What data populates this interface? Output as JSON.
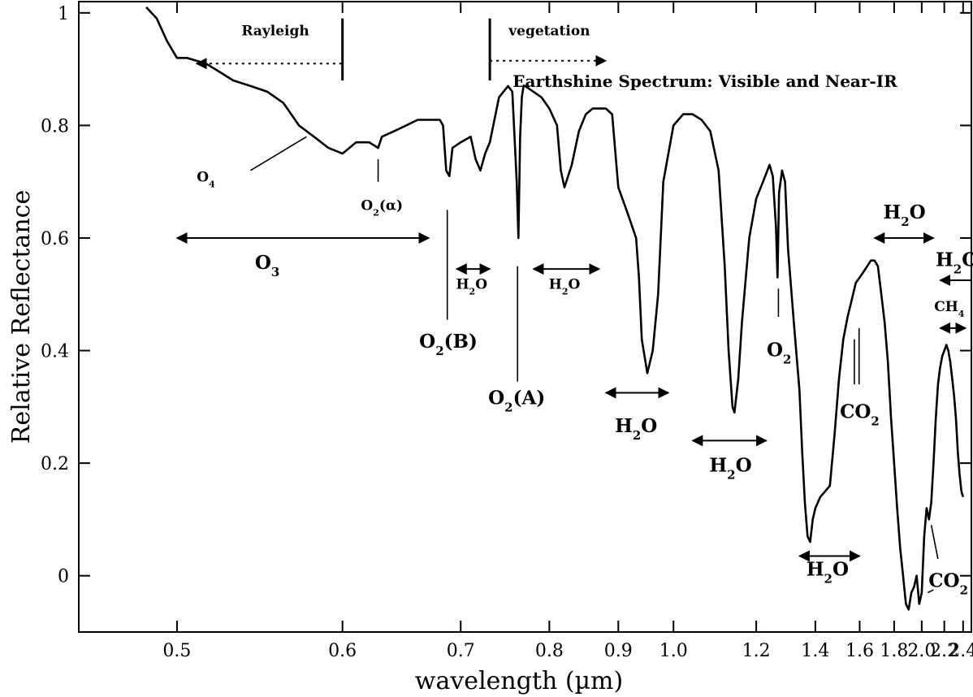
{
  "chart_data": {
    "type": "line",
    "title": "Earthshine Spectrum: Visible and Near-IR",
    "xlabel": "wavelength (µm)",
    "ylabel": "Relative Reflectance",
    "x_scale": "reciprocal",
    "xlim": [
      0.455,
      2.5
    ],
    "ylim": [
      -0.1,
      1.02
    ],
    "x_ticks": [
      0.5,
      0.6,
      0.7,
      0.8,
      0.9,
      1.0,
      1.2,
      1.4,
      1.6,
      1.8,
      2.0,
      2.2,
      2.4
    ],
    "x_tick_labels": [
      "0.5",
      "0.6",
      "0.7",
      "0.8",
      "0.9",
      "1.0",
      "1.2",
      "1.4",
      "1.6",
      "1.8",
      "2.0",
      "2.2",
      "2.4"
    ],
    "y_ticks": [
      0,
      0.2,
      0.4,
      0.6,
      0.8,
      1
    ],
    "y_tick_labels": [
      "0",
      "0.2",
      "0.4",
      "0.6",
      "0.8",
      "1"
    ],
    "grid": false,
    "series": [
      {
        "x": [
          0.485,
          0.49,
          0.495,
          0.5,
          0.505,
          0.51,
          0.515,
          0.52,
          0.53,
          0.54,
          0.55,
          0.56,
          0.57,
          0.58,
          0.59,
          0.6,
          0.61,
          0.62,
          0.627,
          0.63,
          0.64,
          0.65,
          0.66,
          0.67,
          0.68,
          0.683,
          0.686,
          0.689,
          0.692,
          0.7,
          0.71,
          0.715,
          0.72,
          0.725,
          0.73,
          0.74,
          0.75,
          0.755,
          0.76,
          0.762,
          0.764,
          0.766,
          0.768,
          0.77,
          0.78,
          0.79,
          0.8,
          0.81,
          0.815,
          0.82,
          0.83,
          0.84,
          0.85,
          0.86,
          0.87,
          0.88,
          0.89,
          0.9,
          0.91,
          0.92,
          0.93,
          0.935,
          0.94,
          0.95,
          0.96,
          0.97,
          0.98,
          1.0,
          1.02,
          1.04,
          1.06,
          1.08,
          1.1,
          1.115,
          1.125,
          1.135,
          1.14,
          1.15,
          1.16,
          1.18,
          1.2,
          1.22,
          1.24,
          1.25,
          1.26,
          1.265,
          1.27,
          1.28,
          1.29,
          1.3,
          1.32,
          1.34,
          1.35,
          1.36,
          1.37,
          1.38,
          1.39,
          1.4,
          1.42,
          1.44,
          1.46,
          1.48,
          1.5,
          1.52,
          1.54,
          1.56,
          1.58,
          1.6,
          1.62,
          1.64,
          1.66,
          1.68,
          1.7,
          1.72,
          1.74,
          1.76,
          1.78,
          1.8,
          1.82,
          1.84,
          1.86,
          1.88,
          1.9,
          1.92,
          1.94,
          1.96,
          1.98,
          2.0,
          2.02,
          2.04,
          2.06,
          2.08,
          2.1,
          2.12,
          2.14,
          2.16,
          2.18,
          2.2,
          2.22,
          2.24,
          2.26,
          2.28,
          2.3,
          2.32,
          2.34,
          2.36,
          2.38,
          2.4
        ],
        "y": [
          1.01,
          0.99,
          0.95,
          0.92,
          0.92,
          0.915,
          0.91,
          0.9,
          0.88,
          0.87,
          0.86,
          0.84,
          0.8,
          0.78,
          0.76,
          0.75,
          0.77,
          0.77,
          0.76,
          0.78,
          0.79,
          0.8,
          0.81,
          0.81,
          0.81,
          0.8,
          0.72,
          0.71,
          0.76,
          0.77,
          0.78,
          0.74,
          0.72,
          0.75,
          0.77,
          0.85,
          0.87,
          0.86,
          0.7,
          0.6,
          0.78,
          0.85,
          0.87,
          0.87,
          0.86,
          0.85,
          0.83,
          0.8,
          0.72,
          0.69,
          0.73,
          0.79,
          0.82,
          0.83,
          0.83,
          0.83,
          0.82,
          0.69,
          0.66,
          0.63,
          0.6,
          0.53,
          0.42,
          0.36,
          0.4,
          0.5,
          0.7,
          0.8,
          0.82,
          0.82,
          0.81,
          0.79,
          0.72,
          0.55,
          0.4,
          0.3,
          0.29,
          0.35,
          0.45,
          0.6,
          0.67,
          0.7,
          0.73,
          0.71,
          0.62,
          0.53,
          0.68,
          0.72,
          0.7,
          0.58,
          0.45,
          0.33,
          0.22,
          0.13,
          0.07,
          0.06,
          0.1,
          0.12,
          0.14,
          0.15,
          0.16,
          0.25,
          0.35,
          0.42,
          0.46,
          0.49,
          0.52,
          0.53,
          0.54,
          0.55,
          0.56,
          0.56,
          0.55,
          0.5,
          0.45,
          0.38,
          0.28,
          0.2,
          0.12,
          0.05,
          0.0,
          -0.05,
          -0.06,
          -0.03,
          -0.02,
          0.0,
          -0.05,
          -0.03,
          0.07,
          0.12,
          0.1,
          0.13,
          0.2,
          0.28,
          0.34,
          0.37,
          0.39,
          0.4,
          0.41,
          0.4,
          0.38,
          0.35,
          0.32,
          0.28,
          0.22,
          0.18,
          0.15,
          0.14
        ]
      }
    ],
    "annotations": [
      {
        "label": "Rayleigh",
        "kind": "arrow-left",
        "style": "dotted",
        "x1": 0.51,
        "x2": 0.6,
        "y": 0.91,
        "label_x": 0.555,
        "label_y": 0.96,
        "marker_x": 0.6,
        "marker_y1": 0.88,
        "marker_y2": 0.99
      },
      {
        "label": "vegetation",
        "kind": "arrow-right",
        "style": "dotted",
        "x1": 0.73,
        "x2": 0.88,
        "y": 0.915,
        "label_x": 0.8,
        "label_y": 0.96,
        "marker_x": 0.73,
        "marker_y1": 0.88,
        "marker_y2": 0.99
      },
      {
        "label": "O",
        "sub": "4",
        "label_x": 0.515,
        "label_y": 0.7,
        "line": [
          [
            0.54,
            0.72
          ],
          [
            0.575,
            0.78
          ]
        ]
      },
      {
        "label": "O",
        "sub": "2",
        "suffix": "(α)",
        "label_x": 0.63,
        "label_y": 0.65,
        "line": [
          [
            0.627,
            0.7
          ],
          [
            0.627,
            0.74
          ]
        ]
      },
      {
        "label": "O",
        "sub": "3",
        "label_x": 0.55,
        "label_y": 0.545,
        "kind": "double-arrow",
        "x1": 0.5,
        "x2": 0.67,
        "y": 0.6
      },
      {
        "label": "O",
        "sub": "2",
        "suffix": "(B)",
        "label_x": 0.688,
        "label_y": 0.405,
        "line": [
          [
            0.687,
            0.455
          ],
          [
            0.687,
            0.65
          ]
        ]
      },
      {
        "label": "H",
        "sub": "2",
        "suffix": "O",
        "label_x": 0.711,
        "label_y": 0.51,
        "kind": "double-arrow",
        "x1": 0.696,
        "x2": 0.73,
        "y": 0.545,
        "small": true
      },
      {
        "label": "H",
        "sub": "2",
        "suffix": "O",
        "label_x": 0.82,
        "label_y": 0.51,
        "kind": "double-arrow",
        "x1": 0.78,
        "x2": 0.87,
        "y": 0.545,
        "small": true
      },
      {
        "label": "O",
        "sub": "2",
        "suffix": "(A)",
        "label_x": 0.76,
        "label_y": 0.305,
        "line": [
          [
            0.761,
            0.345
          ],
          [
            0.761,
            0.55
          ]
        ]
      },
      {
        "label": "H",
        "sub": "2",
        "suffix": "O",
        "label_x": 0.93,
        "label_y": 0.255,
        "kind": "double-arrow",
        "x1": 0.88,
        "x2": 0.99,
        "y": 0.325
      },
      {
        "label": "O",
        "sub": "2",
        "label_x": 1.27,
        "label_y": 0.39,
        "line": [
          [
            1.268,
            0.46
          ],
          [
            1.268,
            0.51
          ]
        ]
      },
      {
        "label": "H",
        "sub": "2",
        "suffix": "O",
        "label_x": 1.13,
        "label_y": 0.185,
        "kind": "double-arrow",
        "x1": 1.04,
        "x2": 1.23,
        "y": 0.24
      },
      {
        "label": "H",
        "sub": "2",
        "suffix": "O",
        "label_x": 1.45,
        "label_y": 0.0,
        "kind": "double-arrow",
        "x1": 1.34,
        "x2": 1.6,
        "y": 0.035
      },
      {
        "label": "CO",
        "sub": "2",
        "label_x": 1.6,
        "label_y": 0.28,
        "line2": [
          [
            1.573,
            0.34
          ],
          [
            1.573,
            0.42
          ],
          [
            1.597,
            0.34
          ],
          [
            1.597,
            0.44
          ]
        ]
      },
      {
        "label": "H",
        "sub": "2",
        "suffix": "O",
        "label_x": 1.87,
        "label_y": 0.635,
        "kind": "double-arrow",
        "x1": 1.68,
        "x2": 2.1,
        "y": 0.6
      },
      {
        "label": "H",
        "sub": "2",
        "suffix": "O",
        "label_x": 2.33,
        "label_y": 0.55,
        "kind": "arrow-left-solid",
        "x1": 2.16,
        "x2": 2.5,
        "y": 0.525
      },
      {
        "label": "CH",
        "sub": "4",
        "label_x": 2.25,
        "label_y": 0.47,
        "kind": "double-arrow",
        "x1": 2.16,
        "x2": 2.43,
        "y": 0.44,
        "small": true
      },
      {
        "label": "CO",
        "sub": "2",
        "label_x": 2.24,
        "label_y": -0.02,
        "line": [
          [
            2.08,
            0.09
          ],
          [
            2.14,
            0.03
          ]
        ],
        "line_extra": [
          [
            2.05,
            -0.03
          ],
          [
            2.1,
            -0.025
          ]
        ]
      }
    ]
  }
}
